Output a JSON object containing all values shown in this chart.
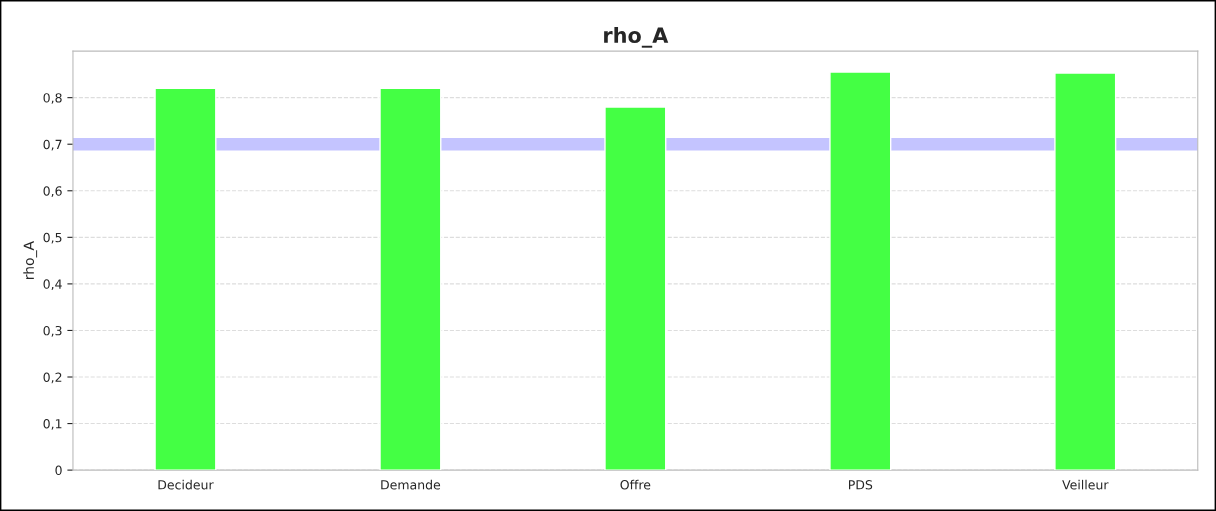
{
  "chart_data": {
    "type": "bar",
    "title": "rho_A",
    "ylabel": "rho_A",
    "categories": [
      "Decideur",
      "Demande",
      "Offre",
      "PDS",
      "Veilleur"
    ],
    "values": [
      0.82,
      0.82,
      0.78,
      0.855,
      0.853
    ],
    "color": "#44ff44",
    "ylim": [
      0,
      0.9
    ],
    "yticks": [
      {
        "value": 0,
        "label": "0"
      },
      {
        "value": 0.1,
        "label": "0,1"
      },
      {
        "value": 0.2,
        "label": "0,2"
      },
      {
        "value": 0.3,
        "label": "0,3"
      },
      {
        "value": 0.4,
        "label": "0,4"
      },
      {
        "value": 0.5,
        "label": "0,5"
      },
      {
        "value": 0.6,
        "label": "0,6"
      },
      {
        "value": 0.7,
        "label": "0,7"
      },
      {
        "value": 0.8,
        "label": "0,8"
      }
    ],
    "ref_lines": [
      {
        "axis": "y",
        "value": 0.7,
        "color": "#c4c4ff"
      }
    ],
    "grid": "y"
  }
}
